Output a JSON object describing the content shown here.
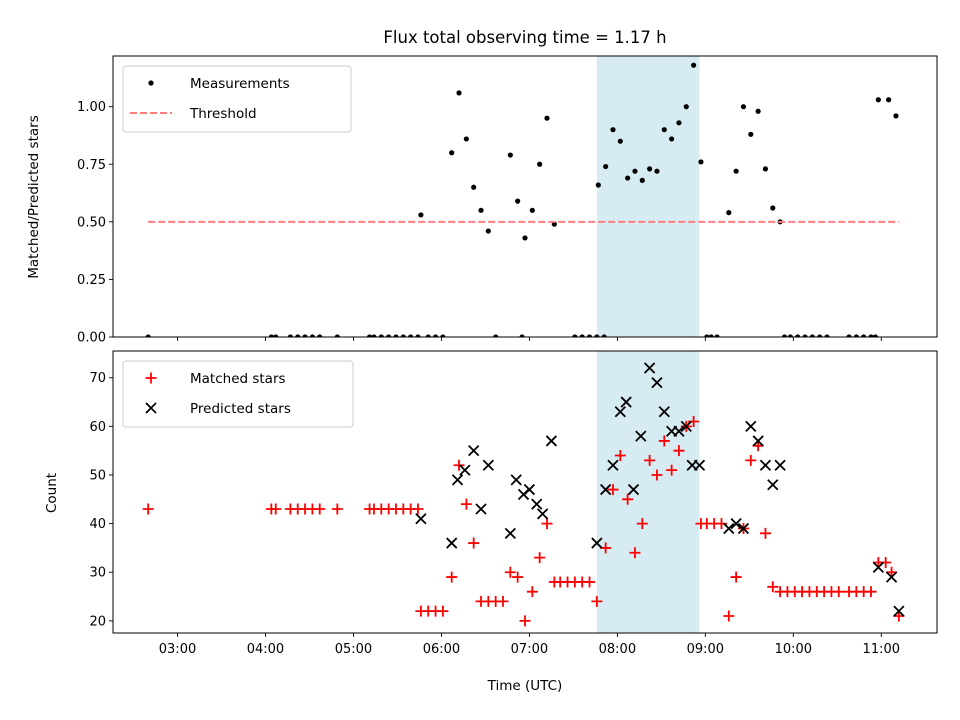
{
  "chart_data": [
    {
      "type": "scatter",
      "title": "Flux total observing time = 1.17 h",
      "ylabel": "Matched/Predicted stars",
      "ylim": [
        0,
        1.22
      ],
      "yticks": [
        "0.00",
        "0.25",
        "0.50",
        "0.75",
        "1.00"
      ],
      "legend_placement": "upper-left",
      "highlight_span": {
        "start": "07:46",
        "end": "08:56",
        "color": "#add8e6"
      },
      "series": [
        {
          "name": "Measurements",
          "marker": "dot",
          "color": "#000000",
          "points": [
            [
              "02:40",
              0.0
            ],
            [
              "04:04",
              0.0
            ],
            [
              "04:07",
              0.0
            ],
            [
              "04:17",
              0.0
            ],
            [
              "04:22",
              0.0
            ],
            [
              "04:27",
              0.0
            ],
            [
              "04:32",
              0.0
            ],
            [
              "04:37",
              0.0
            ],
            [
              "04:49",
              0.0
            ],
            [
              "05:11",
              0.0
            ],
            [
              "05:14",
              0.0
            ],
            [
              "05:19",
              0.0
            ],
            [
              "05:24",
              0.0
            ],
            [
              "05:29",
              0.0
            ],
            [
              "05:34",
              0.0
            ],
            [
              "05:39",
              0.0
            ],
            [
              "05:44",
              0.0
            ],
            [
              "05:51",
              0.0
            ],
            [
              "05:56",
              0.0
            ],
            [
              "06:01",
              0.0
            ],
            [
              "06:37",
              0.0
            ],
            [
              "06:55",
              0.0
            ],
            [
              "07:31",
              0.0
            ],
            [
              "07:36",
              0.0
            ],
            [
              "07:41",
              0.0
            ],
            [
              "07:46",
              0.0
            ],
            [
              "07:51",
              0.0
            ],
            [
              "09:01",
              0.0
            ],
            [
              "09:04",
              0.0
            ],
            [
              "09:08",
              0.0
            ],
            [
              "09:54",
              0.0
            ],
            [
              "09:58",
              0.0
            ],
            [
              "10:03",
              0.0
            ],
            [
              "10:08",
              0.0
            ],
            [
              "10:13",
              0.0
            ],
            [
              "10:18",
              0.0
            ],
            [
              "10:23",
              0.0
            ],
            [
              "10:38",
              0.0
            ],
            [
              "10:43",
              0.0
            ],
            [
              "10:48",
              0.0
            ],
            [
              "10:53",
              0.0
            ],
            [
              "10:56",
              0.0
            ],
            [
              "05:46",
              0.53
            ],
            [
              "06:07",
              0.8
            ],
            [
              "06:12",
              1.06
            ],
            [
              "06:17",
              0.86
            ],
            [
              "06:22",
              0.65
            ],
            [
              "06:27",
              0.55
            ],
            [
              "06:32",
              0.46
            ],
            [
              "06:47",
              0.79
            ],
            [
              "06:52",
              0.59
            ],
            [
              "06:57",
              0.43
            ],
            [
              "07:02",
              0.55
            ],
            [
              "07:07",
              0.75
            ],
            [
              "07:12",
              0.95
            ],
            [
              "07:17",
              0.49
            ],
            [
              "07:47",
              0.66
            ],
            [
              "07:52",
              0.74
            ],
            [
              "07:57",
              0.9
            ],
            [
              "08:02",
              0.85
            ],
            [
              "08:07",
              0.69
            ],
            [
              "08:12",
              0.72
            ],
            [
              "08:17",
              0.68
            ],
            [
              "08:22",
              0.73
            ],
            [
              "08:27",
              0.72
            ],
            [
              "08:32",
              0.9
            ],
            [
              "08:37",
              0.86
            ],
            [
              "08:42",
              0.93
            ],
            [
              "08:47",
              1.0
            ],
            [
              "08:52",
              1.18
            ],
            [
              "08:57",
              0.76
            ],
            [
              "09:16",
              0.54
            ],
            [
              "09:21",
              0.72
            ],
            [
              "09:26",
              1.0
            ],
            [
              "09:31",
              0.88
            ],
            [
              "09:36",
              0.98
            ],
            [
              "09:41",
              0.73
            ],
            [
              "09:46",
              0.56
            ],
            [
              "09:51",
              0.5
            ],
            [
              "10:58",
              1.03
            ],
            [
              "11:05",
              1.03
            ],
            [
              "11:10",
              0.96
            ]
          ]
        },
        {
          "name": "Threshold",
          "marker": "dashed-line",
          "color": "#ff7f7f",
          "points": [
            [
              "02:40",
              0.5
            ],
            [
              "11:12",
              0.5
            ]
          ]
        }
      ]
    },
    {
      "type": "scatter",
      "xlabel": "Time (UTC)",
      "ylabel": "Count",
      "ylim": [
        17.5,
        75.5
      ],
      "yticks": [
        "20",
        "30",
        "40",
        "50",
        "60",
        "70"
      ],
      "xlim": [
        "02:16",
        "11:38"
      ],
      "xticks": [
        "03:00",
        "04:00",
        "05:00",
        "06:00",
        "07:00",
        "08:00",
        "09:00",
        "10:00",
        "11:00"
      ],
      "legend_placement": "upper-left",
      "highlight_span": {
        "start": "07:46",
        "end": "08:56",
        "color": "#add8e6"
      },
      "series": [
        {
          "name": "Matched stars",
          "marker": "plus",
          "color": "#ff0000",
          "points": [
            [
              "02:40",
              43
            ],
            [
              "04:04",
              43
            ],
            [
              "04:07",
              43
            ],
            [
              "04:17",
              43
            ],
            [
              "04:22",
              43
            ],
            [
              "04:27",
              43
            ],
            [
              "04:32",
              43
            ],
            [
              "04:37",
              43
            ],
            [
              "04:49",
              43
            ],
            [
              "05:11",
              43
            ],
            [
              "05:14",
              43
            ],
            [
              "05:19",
              43
            ],
            [
              "05:24",
              43
            ],
            [
              "05:29",
              43
            ],
            [
              "05:34",
              43
            ],
            [
              "05:39",
              43
            ],
            [
              "05:44",
              43
            ],
            [
              "05:46",
              22
            ],
            [
              "05:51",
              22
            ],
            [
              "05:56",
              22
            ],
            [
              "06:01",
              22
            ],
            [
              "06:07",
              29
            ],
            [
              "06:12",
              52
            ],
            [
              "06:17",
              44
            ],
            [
              "06:22",
              36
            ],
            [
              "06:27",
              24
            ],
            [
              "06:32",
              24
            ],
            [
              "06:37",
              24
            ],
            [
              "06:42",
              24
            ],
            [
              "06:47",
              30
            ],
            [
              "06:52",
              29
            ],
            [
              "06:57",
              20
            ],
            [
              "07:02",
              26
            ],
            [
              "07:07",
              33
            ],
            [
              "07:12",
              40
            ],
            [
              "07:17",
              28
            ],
            [
              "07:21",
              28
            ],
            [
              "07:26",
              28
            ],
            [
              "07:31",
              28
            ],
            [
              "07:36",
              28
            ],
            [
              "07:41",
              28
            ],
            [
              "07:46",
              24
            ],
            [
              "07:52",
              35
            ],
            [
              "07:57",
              47
            ],
            [
              "08:02",
              54
            ],
            [
              "08:07",
              45
            ],
            [
              "08:12",
              34
            ],
            [
              "08:17",
              40
            ],
            [
              "08:22",
              53
            ],
            [
              "08:27",
              50
            ],
            [
              "08:32",
              57
            ],
            [
              "08:37",
              51
            ],
            [
              "08:42",
              55
            ],
            [
              "08:47",
              60
            ],
            [
              "08:52",
              61
            ],
            [
              "08:57",
              40
            ],
            [
              "09:01",
              40
            ],
            [
              "09:06",
              40
            ],
            [
              "09:11",
              40
            ],
            [
              "09:16",
              21
            ],
            [
              "09:21",
              29
            ],
            [
              "09:26",
              39
            ],
            [
              "09:31",
              53
            ],
            [
              "09:36",
              56
            ],
            [
              "09:41",
              38
            ],
            [
              "09:46",
              27
            ],
            [
              "09:51",
              26
            ],
            [
              "09:56",
              26
            ],
            [
              "10:01",
              26
            ],
            [
              "10:06",
              26
            ],
            [
              "10:11",
              26
            ],
            [
              "10:16",
              26
            ],
            [
              "10:21",
              26
            ],
            [
              "10:26",
              26
            ],
            [
              "10:31",
              26
            ],
            [
              "10:38",
              26
            ],
            [
              "10:43",
              26
            ],
            [
              "10:48",
              26
            ],
            [
              "10:53",
              26
            ],
            [
              "10:58",
              32
            ],
            [
              "11:03",
              32
            ],
            [
              "11:07",
              30
            ],
            [
              "11:12",
              21
            ]
          ]
        },
        {
          "name": "Predicted stars",
          "marker": "x",
          "color": "#000000",
          "points": [
            [
              "05:46",
              41
            ],
            [
              "06:07",
              36
            ],
            [
              "06:11",
              49
            ],
            [
              "06:16",
              51
            ],
            [
              "06:22",
              55
            ],
            [
              "06:27",
              43
            ],
            [
              "06:32",
              52
            ],
            [
              "06:47",
              38
            ],
            [
              "06:51",
              49
            ],
            [
              "06:56",
              46
            ],
            [
              "07:00",
              47
            ],
            [
              "07:05",
              44
            ],
            [
              "07:09",
              42
            ],
            [
              "07:15",
              57
            ],
            [
              "07:46",
              36
            ],
            [
              "07:52",
              47
            ],
            [
              "07:57",
              52
            ],
            [
              "08:02",
              63
            ],
            [
              "08:06",
              65
            ],
            [
              "08:11",
              47
            ],
            [
              "08:16",
              58
            ],
            [
              "08:22",
              72
            ],
            [
              "08:27",
              69
            ],
            [
              "08:32",
              63
            ],
            [
              "08:37",
              59
            ],
            [
              "08:42",
              59
            ],
            [
              "08:47",
              60
            ],
            [
              "08:51",
              52
            ],
            [
              "08:56",
              52
            ],
            [
              "09:16",
              39
            ],
            [
              "09:21",
              40
            ],
            [
              "09:26",
              39
            ],
            [
              "09:31",
              60
            ],
            [
              "09:36",
              57
            ],
            [
              "09:41",
              52
            ],
            [
              "09:46",
              48
            ],
            [
              "09:51",
              52
            ],
            [
              "10:58",
              31
            ],
            [
              "11:07",
              29
            ],
            [
              "11:12",
              22
            ]
          ]
        }
      ]
    }
  ]
}
